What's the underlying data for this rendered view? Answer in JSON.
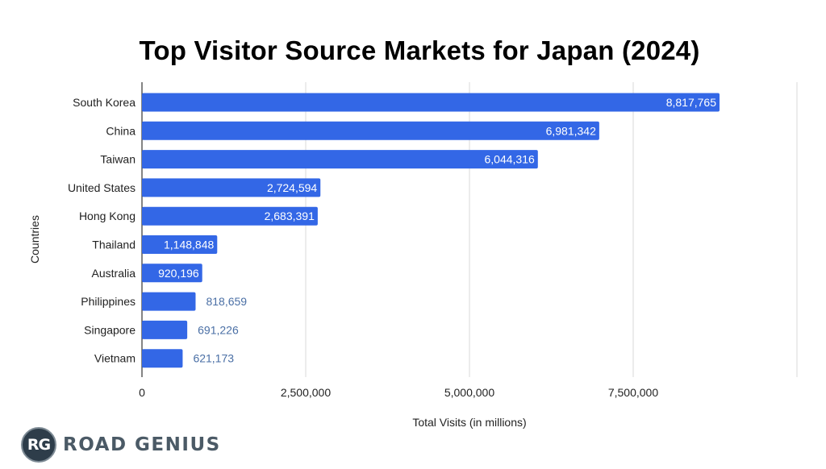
{
  "chart_data": {
    "type": "bar",
    "orientation": "horizontal",
    "title": "Top Visitor Source Markets for Japan (2024)",
    "xlabel": "Total Visits (in millions)",
    "ylabel": "Countries",
    "categories": [
      "South Korea",
      "China",
      "Taiwan",
      "United States",
      "Hong Kong",
      "Thailand",
      "Australia",
      "Philippines",
      "Singapore",
      "Vietnam"
    ],
    "values": [
      8817765,
      6981342,
      6044316,
      2724594,
      2683391,
      1148848,
      920196,
      818659,
      691226,
      621173
    ],
    "value_labels": [
      "8,817,765",
      "6,981,342",
      "6,044,316",
      "2,724,594",
      "2,683,391",
      "1,148,848",
      "920,196",
      "818,659",
      "691,226",
      "621,173"
    ],
    "xlim": [
      0,
      10000000
    ],
    "xticks": [
      0,
      2500000,
      5000000,
      7500000
    ],
    "xtick_labels": [
      "0",
      "2,500,000",
      "5,000,000",
      "7,500,000"
    ],
    "grid": true,
    "legend": "none",
    "colors": {
      "bar": "#3367e6",
      "grid": "#d9d9d9",
      "label_inside": "#ffffff",
      "label_outside": "#4a6fa5",
      "text": "#222222"
    }
  },
  "brand": {
    "logo_text": "RG",
    "name": "ROAD GENIUS"
  }
}
